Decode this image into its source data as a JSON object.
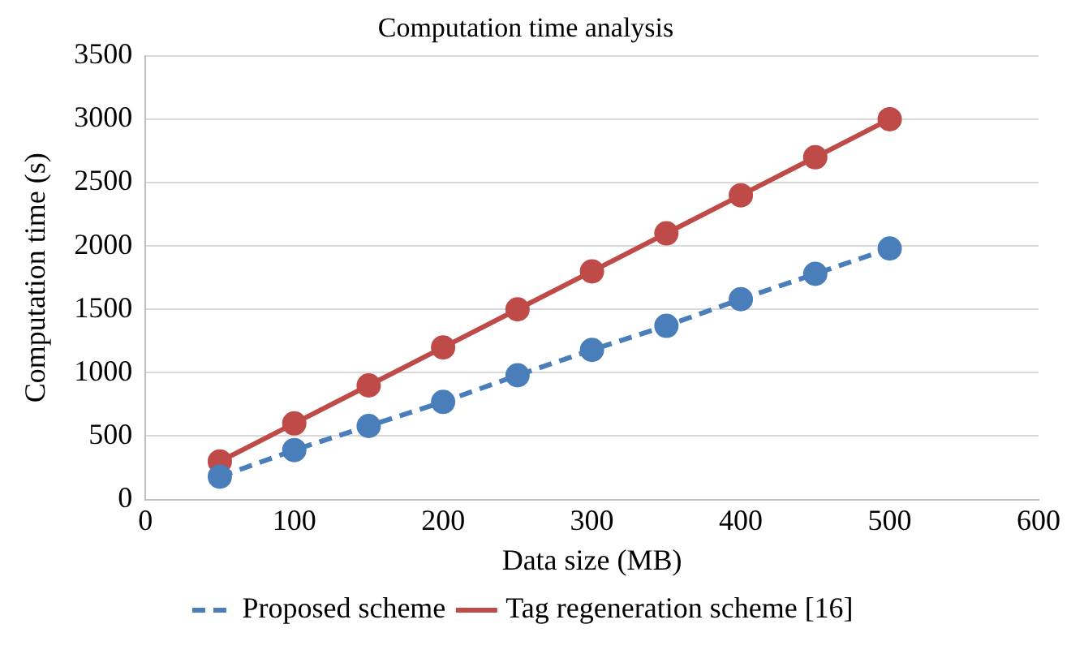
{
  "chart_data": {
    "type": "line",
    "title": "Computation time analysis",
    "xlabel": "Data size (MB)",
    "ylabel": "Computation time (s)",
    "x": [
      50,
      100,
      150,
      200,
      250,
      300,
      350,
      400,
      450,
      500
    ],
    "series": [
      {
        "name": "Proposed scheme",
        "color": "#4a7ebb",
        "line_style": "dashed",
        "values": [
          180,
          390,
          580,
          770,
          980,
          1180,
          1370,
          1580,
          1780,
          1980
        ]
      },
      {
        "name": "Tag regeneration scheme [16]",
        "color": "#be4b48",
        "line_style": "solid",
        "values": [
          300,
          600,
          900,
          1200,
          1500,
          1800,
          2100,
          2400,
          2700,
          3000
        ]
      }
    ],
    "xlim": [
      0,
      600
    ],
    "xticks": [
      0,
      100,
      200,
      300,
      400,
      500,
      600
    ],
    "ylim": [
      0,
      3500
    ],
    "yticks": [
      0,
      500,
      1000,
      1500,
      2000,
      2500,
      3000,
      3500
    ],
    "grid": "y",
    "legend": "bottom",
    "marker": "circle"
  }
}
